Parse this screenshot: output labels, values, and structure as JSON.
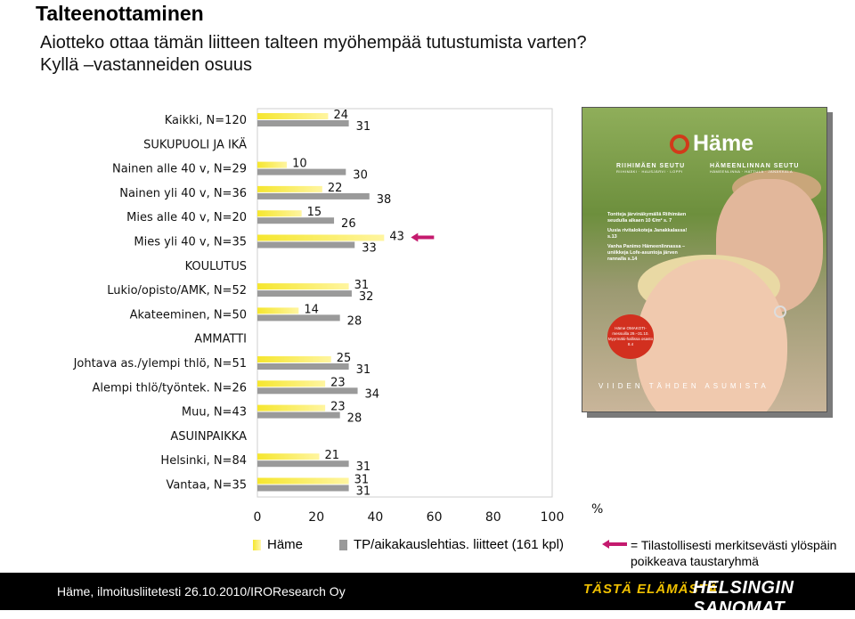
{
  "header": {
    "title": "Talteenottaminen",
    "question_line1": "Aiotteko ottaa tämän liitteen talteen myöhempää tutustumista varten?",
    "question_line2": "Kyllä –vastanneiden osuus"
  },
  "chart_data": {
    "type": "bar",
    "orientation": "horizontal",
    "x_ticks": [
      "0",
      "20",
      "40",
      "60",
      "80",
      "100"
    ],
    "xlim": [
      0,
      100
    ],
    "x_unit": "%",
    "rows": [
      {
        "label": "Kaikki, N=120",
        "heading": false,
        "hame": 24,
        "tp": 31
      },
      {
        "label": "SUKUPUOLI JA IKÄ",
        "heading": true
      },
      {
        "label": "Nainen alle 40 v, N=29",
        "heading": false,
        "hame": 10,
        "tp": 30
      },
      {
        "label": "Nainen yli 40 v, N=36",
        "heading": false,
        "hame": 22,
        "tp": 38
      },
      {
        "label": "Mies alle 40 v, N=20",
        "heading": false,
        "hame": 15,
        "tp": 26
      },
      {
        "label": "Mies yli 40 v, N=35",
        "heading": false,
        "hame": 43,
        "tp": 33,
        "significant": "hame"
      },
      {
        "label": "KOULUTUS",
        "heading": true
      },
      {
        "label": "Lukio/opisto/AMK, N=52",
        "heading": false,
        "hame": 31,
        "tp": 32
      },
      {
        "label": "Akateeminen, N=50",
        "heading": false,
        "hame": 14,
        "tp": 28
      },
      {
        "label": "AMMATTI",
        "heading": true
      },
      {
        "label": "Johtava as./ylempi thlö, N=51",
        "heading": false,
        "hame": 25,
        "tp": 31
      },
      {
        "label": "Alempi thlö/työntek. N=26",
        "heading": false,
        "hame": 23,
        "tp": 34
      },
      {
        "label": "Muu, N=43",
        "heading": false,
        "hame": 23,
        "tp": 28
      },
      {
        "label": "ASUINPAIKKA",
        "heading": true
      },
      {
        "label": "Helsinki, N=84",
        "heading": false,
        "hame": 21,
        "tp": 31
      },
      {
        "label": "Vantaa, N=35",
        "heading": false,
        "hame": 31,
        "tp": 31
      }
    ],
    "series": [
      {
        "key": "hame",
        "name": "Häme",
        "color": "#f5e62e"
      },
      {
        "key": "tp",
        "name": "TP/aikakauslehtias. liitteet (161 kpl)",
        "color": "#9a9a9a"
      }
    ],
    "grid": false,
    "legend_position": "bottom"
  },
  "note": {
    "line1": "= Tilastollisesti merkitsevästi ylöspäin",
    "line2": "poikkeava taustaryhmä",
    "arrow_color": "#c41a6e"
  },
  "cover": {
    "logo": "Häme",
    "region1": "RIIHIMÄEN SEUTU",
    "region1_sub": "RIIHIMÄKI · HAUSJÄRVI · LOPPI",
    "region2": "HÄMEENLINNAN SEUTU",
    "region2_sub": "HÄMEENLINNA · HATTULA · JANAKKALA",
    "text1": "Tontteja järvinäkymällä Riihimäen seudulla alkaen 10 €/m² s. 7",
    "text2": "Uusia rivitalokoteja Janakkalassa! s.13",
    "text3": "Vanha Panimo Hämeenlinnassa – uniikkeja Lofe-asuntoja järven rannalla s.14",
    "badge": "Häme OMAKOTI-messuilla 29.–31.10. Myyrmäki-hallissa osasto 8.4",
    "bottom": "VIIDEN TÄHDEN ASUMISTA"
  },
  "footer": {
    "text": "Häme, ilmoitusliitetesti 26.10.2010/IROResearch Oy",
    "brand1": "TÄSTÄ ELÄMÄSTÄ.",
    "brand2": "HELSINGIN SANOMAT"
  }
}
